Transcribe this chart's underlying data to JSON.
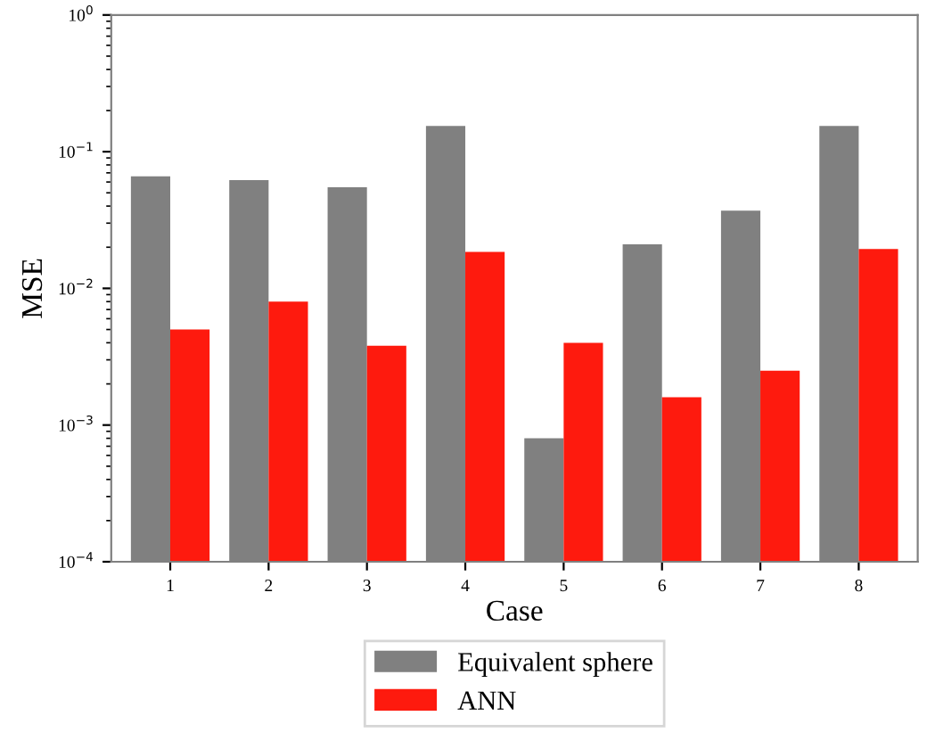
{
  "chart_data": {
    "type": "bar",
    "xlabel": "Case",
    "ylabel": "MSE",
    "categories": [
      "1",
      "2",
      "3",
      "4",
      "5",
      "6",
      "7",
      "8"
    ],
    "series": [
      {
        "name": "Equivalent sphere",
        "color": "#808080",
        "values": [
          0.066,
          0.062,
          0.055,
          0.154,
          0.0008,
          0.021,
          0.037,
          0.154
        ]
      },
      {
        "name": "ANN",
        "color": "#fe1a0e",
        "values": [
          0.005,
          0.008,
          0.0038,
          0.0185,
          0.004,
          0.0016,
          0.0025,
          0.0194
        ]
      }
    ],
    "log": true,
    "ylim": [
      0.0001,
      1
    ],
    "yticks": [
      {
        "value": 0.0001,
        "label": "10$^{−4}$"
      },
      {
        "value": 0.001,
        "label": "10$^{−3}$"
      },
      {
        "value": 0.01,
        "label": "10$^{−2}$"
      },
      {
        "value": 0.1,
        "label": "10$^{−1}$"
      },
      {
        "value": 1,
        "label": "10$^{0}$"
      }
    ],
    "grid": false,
    "legend": "bottom"
  }
}
